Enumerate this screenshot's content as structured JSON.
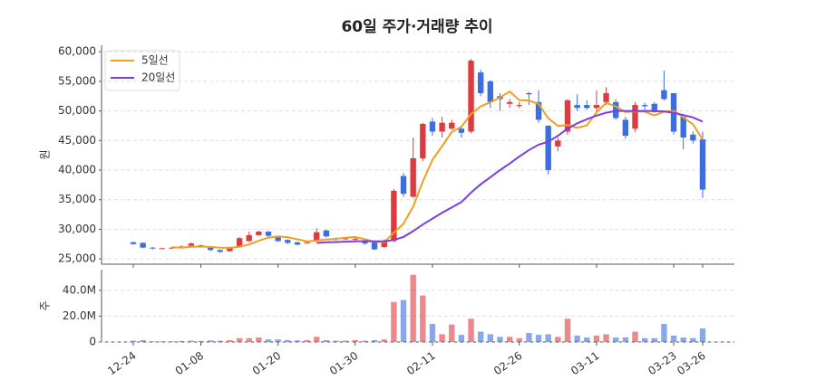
{
  "chart_data": [
    {
      "type": "candlestick",
      "title": "60일 주가·거래량 추이",
      "ylabel": "원",
      "up_color": "#de3b3f",
      "down_color": "#3b6ee0",
      "grid": true,
      "legend": "upper left",
      "categories": [
        "12-24",
        null,
        null,
        null,
        null,
        null,
        null,
        "01-08",
        null,
        null,
        null,
        null,
        null,
        null,
        null,
        "01-20",
        null,
        null,
        null,
        null,
        null,
        null,
        null,
        "01-30",
        null,
        null,
        null,
        null,
        null,
        null,
        null,
        "02-11",
        null,
        null,
        null,
        null,
        null,
        null,
        null,
        null,
        "02-26",
        null,
        null,
        null,
        null,
        null,
        null,
        null,
        "03-11",
        null,
        null,
        null,
        null,
        null,
        null,
        null,
        "03-23",
        null,
        null,
        "03-26"
      ],
      "open": [
        27800,
        27700,
        26900,
        26800,
        26800,
        26900,
        27200,
        27300,
        26900,
        26500,
        26300,
        27000,
        28000,
        29000,
        29600,
        28700,
        28200,
        27800,
        27700,
        28000,
        29800,
        28500,
        28300,
        28300,
        28000,
        27800,
        27000,
        28000,
        39000,
        35500,
        42000,
        48200,
        46500,
        47000,
        47000,
        46500,
        56500,
        55000,
        52500,
        51200,
        51000,
        53000,
        51500,
        47500,
        44000,
        46500,
        51000,
        51000,
        50500,
        51500,
        51500,
        48500,
        47000,
        51000,
        51200,
        53500,
        53000,
        49000,
        46000,
        45200
      ],
      "high": [
        27900,
        27800,
        27000,
        26900,
        27000,
        27300,
        27800,
        27400,
        27000,
        26600,
        27100,
        28700,
        29600,
        29800,
        29700,
        28800,
        28300,
        27900,
        28000,
        30200,
        29900,
        28600,
        28700,
        28600,
        28200,
        27900,
        28300,
        36800,
        39500,
        45500,
        48000,
        48800,
        49000,
        48500,
        47500,
        58800,
        57000,
        55200,
        53000,
        52000,
        51500,
        53200,
        53500,
        47600,
        45500,
        52000,
        52800,
        51800,
        53500,
        54000,
        52000,
        49000,
        51500,
        51400,
        51500,
        56800,
        53000,
        49200,
        46500,
        46500
      ],
      "low": [
        27400,
        26800,
        26600,
        26700,
        26700,
        26800,
        27100,
        26900,
        26300,
        26000,
        26200,
        26900,
        27900,
        28900,
        28700,
        27900,
        27500,
        27300,
        27600,
        27900,
        28600,
        28100,
        28200,
        28100,
        27400,
        26500,
        26900,
        27800,
        35500,
        35300,
        41500,
        45800,
        45500,
        46800,
        45500,
        46200,
        52500,
        50500,
        50000,
        50500,
        50500,
        51000,
        48000,
        39300,
        43200,
        46000,
        50000,
        50200,
        49500,
        51000,
        48500,
        45300,
        46500,
        50200,
        49700,
        51800,
        46000,
        43500,
        44500,
        35300
      ],
      "close": [
        27500,
        26900,
        26800,
        26800,
        26900,
        27100,
        27600,
        27000,
        26500,
        26200,
        27000,
        28500,
        29000,
        29600,
        28900,
        28000,
        27700,
        27400,
        27800,
        29500,
        28800,
        28300,
        28500,
        28400,
        27600,
        26600,
        28000,
        36500,
        36000,
        42000,
        47800,
        46500,
        48000,
        48000,
        46300,
        58500,
        53000,
        51500,
        52000,
        51500,
        51000,
        52800,
        48500,
        40000,
        45000,
        51800,
        50500,
        50500,
        51000,
        53000,
        48800,
        45800,
        51000,
        50800,
        49800,
        52000,
        46500,
        45500,
        45000,
        36700
      ],
      "series": [
        {
          "name": "5일선",
          "color": "#f0a020",
          "values": [
            null,
            null,
            null,
            null,
            26980,
            26900,
            27040,
            27080,
            27020,
            26880,
            26860,
            27040,
            27440,
            28060,
            28600,
            28800,
            28640,
            28320,
            27960,
            28080,
            28260,
            28380,
            28580,
            28700,
            28320,
            27880,
            27820,
            29420,
            30940,
            33820,
            38060,
            41760,
            44060,
            46460,
            47320,
            49460,
            50760,
            51460,
            52260,
            53300,
            51800,
            51760,
            51160,
            48760,
            47460,
            47620,
            47160,
            47560,
            49760,
            51360,
            50760,
            49820,
            49920,
            49880,
            49240,
            49880,
            50020,
            48920,
            47720,
            45140
          ]
        },
        {
          "name": "20일선",
          "color": "#7b3fe0",
          "values": [
            null,
            null,
            null,
            null,
            null,
            null,
            null,
            null,
            null,
            null,
            null,
            null,
            null,
            null,
            null,
            null,
            null,
            null,
            null,
            27700,
            27800,
            27850,
            27900,
            27950,
            28000,
            27950,
            27950,
            28200,
            28700,
            29700,
            30800,
            31800,
            32800,
            33700,
            34600,
            36200,
            37600,
            38800,
            40000,
            41100,
            42300,
            43400,
            44300,
            44800,
            45800,
            47000,
            47900,
            48600,
            49200,
            49700,
            50000,
            50000,
            50000,
            50000,
            50000,
            49900,
            49700,
            49300,
            48900,
            48200
          ]
        }
      ],
      "ylim": [
        24100,
        61100
      ],
      "yticks": [
        {
          "value": 25000,
          "label": "25,000"
        },
        {
          "value": 30000,
          "label": "30,000"
        },
        {
          "value": 35000,
          "label": "35,000"
        },
        {
          "value": 40000,
          "label": "40,000"
        },
        {
          "value": 45000,
          "label": "45,000"
        },
        {
          "value": 50000,
          "label": "50,000"
        },
        {
          "value": 55000,
          "label": "55,000"
        },
        {
          "value": 60000,
          "label": "60,000"
        }
      ]
    },
    {
      "type": "bar",
      "ylabel": "주",
      "grid": true,
      "values": [
        1000000,
        1500000,
        500000,
        500000,
        500000,
        800000,
        1000000,
        800000,
        1200000,
        1000000,
        1500000,
        3000000,
        3000000,
        3500000,
        2000000,
        2000000,
        1500000,
        1200000,
        1500000,
        4000000,
        1500000,
        1000000,
        1000000,
        1500000,
        1000000,
        1500000,
        2000000,
        31000000,
        32500000,
        52000000,
        36000000,
        14000000,
        6000000,
        13500000,
        5500000,
        18000000,
        8000000,
        6000000,
        4000000,
        4000000,
        3000000,
        7000000,
        5500000,
        6000000,
        4000000,
        18000000,
        5000000,
        3500000,
        5000000,
        6000000,
        3500000,
        3500000,
        8000000,
        3000000,
        3000000,
        14000000,
        5000000,
        3500000,
        3000000,
        10500000
      ],
      "ylim": [
        0,
        56000000
      ],
      "yticks": [
        0,
        {
          "value": 20000000,
          "label": "20.0M"
        },
        {
          "value": 40000000,
          "label": "40.0M"
        }
      ]
    }
  ]
}
